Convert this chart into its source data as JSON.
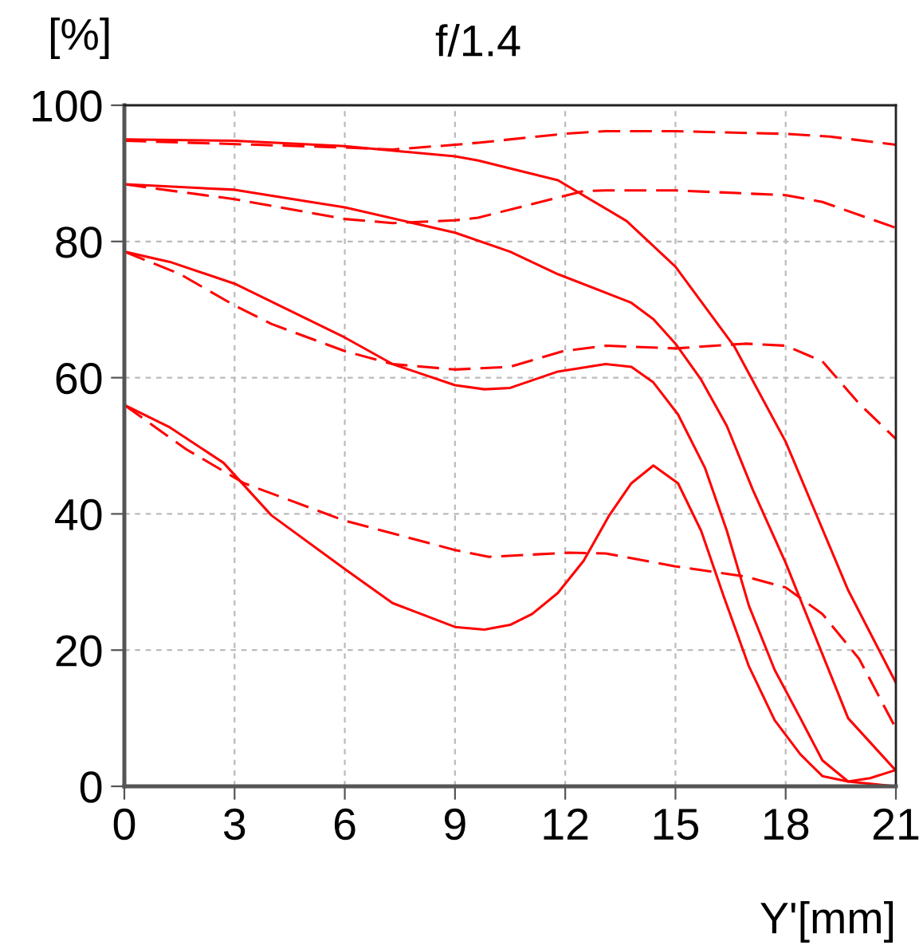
{
  "chart_data": {
    "type": "line",
    "title": "f/1.4",
    "ylabel": "[%]",
    "xlabel": "Y'[mm]",
    "xlim": [
      0,
      21
    ],
    "xticks": [
      0,
      3,
      6,
      9,
      12,
      15,
      18,
      21
    ],
    "ylim": [
      0,
      100
    ],
    "yticks": [
      0,
      20,
      40,
      60,
      80,
      100
    ],
    "grid": true,
    "marker": "none",
    "series": [
      {
        "color": "#ff0000",
        "line_style": "solid",
        "x": [
          0,
          3,
          6,
          9,
          9.63,
          11.8,
          13.67,
          15,
          16.6,
          18,
          19.7,
          21
        ],
        "values": [
          95,
          94.8,
          94,
          92.5,
          91.9,
          89,
          83,
          76.3,
          64.6,
          50.6,
          28.8,
          15.2
        ]
      },
      {
        "color": "#ff0000",
        "line_style": "solid",
        "x": [
          0,
          3,
          6,
          9,
          10.5,
          11.8,
          13.8,
          14.4,
          15,
          15.7,
          16.4,
          17.1,
          18,
          19,
          19.7,
          21
        ],
        "values": [
          88.4,
          87.6,
          85,
          81.3,
          78.5,
          75.2,
          71,
          68.6,
          65,
          59.7,
          52.9,
          43.6,
          32.8,
          19.4,
          10,
          2.3
        ]
      },
      {
        "color": "#ff0000",
        "line_style": "solid",
        "x": [
          0,
          1.24,
          3,
          6,
          7.3,
          9,
          9.8,
          10.5,
          11.8,
          13.1,
          13.8,
          14.4,
          15.07,
          15.8,
          16.4,
          17,
          17.7,
          18.4,
          19,
          19.7,
          20.3,
          21
        ],
        "values": [
          78.5,
          77,
          73.8,
          65.9,
          62,
          58.9,
          58.3,
          58.5,
          60.9,
          62,
          61.6,
          59.3,
          54.6,
          46.8,
          37.5,
          26.5,
          17.1,
          10,
          3.8,
          0.7,
          1.2,
          2.4
        ]
      },
      {
        "color": "#ff0000",
        "line_style": "solid",
        "x": [
          0,
          1.24,
          2.7,
          4,
          6,
          7.3,
          9,
          9.8,
          10.5,
          11.1,
          11.8,
          12.5,
          13.2,
          13.8,
          14.4,
          15.07,
          15.7,
          16.3,
          17,
          17.7,
          18.4,
          19,
          19.7,
          21
        ],
        "values": [
          56,
          52.7,
          47.5,
          39.8,
          31.9,
          26.9,
          23.4,
          23,
          23.7,
          25.3,
          28.4,
          33.1,
          39.8,
          44.5,
          47.1,
          44.5,
          37.5,
          28.1,
          17.6,
          9.7,
          4.7,
          1.5,
          0.7,
          0
        ]
      },
      {
        "color": "#ff0000",
        "line_style": "dashed",
        "x": [
          0,
          6,
          7.3,
          9,
          9.63,
          11.95,
          13.1,
          15,
          18,
          19.2,
          21
        ],
        "values": [
          94.8,
          93.8,
          93.5,
          94.2,
          94.5,
          95.8,
          96.2,
          96.2,
          95.8,
          95.4,
          94.2
        ]
      },
      {
        "color": "#ff0000",
        "line_style": "dashed",
        "x": [
          0,
          3,
          6,
          7.3,
          9,
          9.63,
          12.5,
          13.1,
          15,
          18,
          19,
          21
        ],
        "values": [
          88.4,
          86.2,
          83.3,
          82.7,
          83.1,
          83.5,
          87.4,
          87.5,
          87.5,
          86.8,
          85.8,
          82
        ]
      },
      {
        "color": "#ff0000",
        "line_style": "dashed",
        "x": [
          0,
          1.52,
          3,
          4,
          6,
          7.3,
          9,
          10.5,
          11.95,
          13.1,
          15,
          16.9,
          18,
          19,
          20,
          21
        ],
        "values": [
          78.5,
          75.2,
          70.6,
          67.9,
          63.9,
          62,
          61.2,
          61.6,
          63.9,
          64.7,
          64.3,
          65,
          64.7,
          62.4,
          56.2,
          51
        ]
      },
      {
        "color": "#ff0000",
        "line_style": "dashed",
        "x": [
          0,
          1.68,
          3.26,
          6,
          9,
          9.92,
          12.1,
          13.1,
          15,
          16.9,
          18,
          19,
          20,
          21
        ],
        "values": [
          56,
          49.5,
          44.5,
          39,
          34.7,
          33.7,
          34.3,
          34.2,
          32.3,
          30.8,
          29.2,
          25.3,
          18.7,
          8.5
        ]
      }
    ]
  }
}
